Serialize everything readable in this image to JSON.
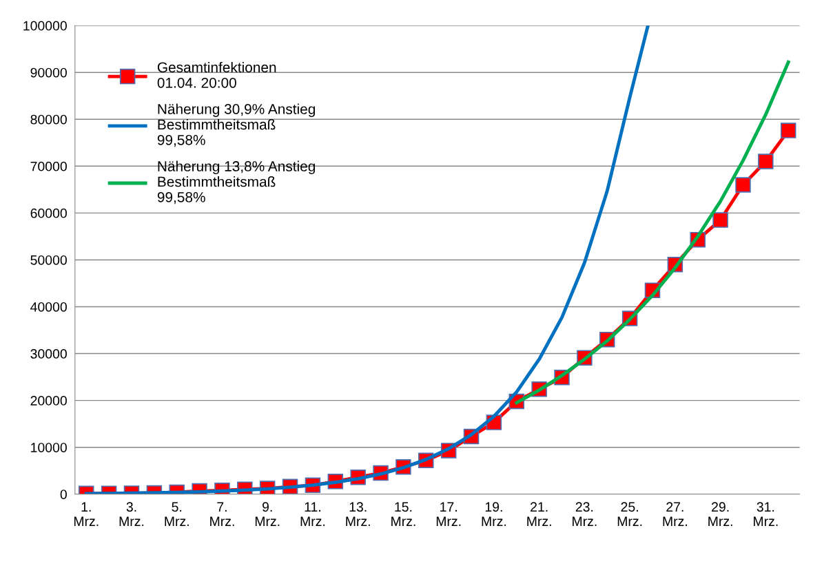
{
  "chart_data": {
    "type": "line",
    "x": [
      1,
      2,
      3,
      4,
      5,
      6,
      7,
      8,
      9,
      10,
      11,
      12,
      13,
      14,
      15,
      16,
      17,
      18,
      19,
      20,
      21,
      22,
      23,
      24,
      25,
      26,
      27,
      28,
      29,
      30,
      31,
      32
    ],
    "xlim": [
      0.5,
      32.5
    ],
    "xticks": [
      {
        "value": 1,
        "label": "1.\nMrz."
      },
      {
        "value": 3,
        "label": "3.\nMrz."
      },
      {
        "value": 5,
        "label": "5.\nMrz."
      },
      {
        "value": 7,
        "label": "7.\nMrz."
      },
      {
        "value": 9,
        "label": "9.\nMrz."
      },
      {
        "value": 11,
        "label": "11.\nMrz."
      },
      {
        "value": 13,
        "label": "13.\nMrz."
      },
      {
        "value": 15,
        "label": "15.\nMrz."
      },
      {
        "value": 17,
        "label": "17.\nMrz."
      },
      {
        "value": 19,
        "label": "19.\nMrz."
      },
      {
        "value": 21,
        "label": "21.\nMrz."
      },
      {
        "value": 23,
        "label": "23.\nMrz."
      },
      {
        "value": 25,
        "label": "25.\nMrz."
      },
      {
        "value": 27,
        "label": "27.\nMrz."
      },
      {
        "value": 29,
        "label": "29.\nMrz."
      },
      {
        "value": 31,
        "label": "31.\nMrz."
      }
    ],
    "ylim": [
      0,
      100000
    ],
    "yticks": [
      0,
      10000,
      20000,
      30000,
      40000,
      50000,
      60000,
      70000,
      80000,
      90000,
      100000
    ],
    "grid": "y",
    "legend": "top left",
    "line_style": "solid",
    "series": [
      {
        "name": "Gesamtinfektionen\n01.04. 20:00",
        "color": "#ff0000",
        "marker": "square",
        "values": [
          130,
          160,
          200,
          260,
          400,
          680,
          800,
          1040,
          1200,
          1600,
          1900,
          2700,
          3600,
          4500,
          5800,
          7200,
          9300,
          12300,
          15300,
          19800,
          22400,
          24900,
          29100,
          33000,
          37500,
          43500,
          49000,
          54300,
          58500,
          66000,
          71000,
          77600
        ]
      },
      {
        "name": "Näherung 30,9% Anstieg\nBestimmtheitsmaß\n99,58%",
        "color": "#0070c0",
        "marker": "none",
        "x": [
          1,
          2,
          3,
          4,
          5,
          6,
          7,
          8,
          9,
          10,
          11,
          12,
          13,
          14,
          15,
          16,
          17,
          18,
          19,
          20,
          21,
          22,
          23,
          24,
          25,
          25.8
        ],
        "values": [
          131,
          172,
          225,
          294,
          385,
          500,
          660,
          860,
          1130,
          1480,
          1930,
          2530,
          3300,
          4300,
          5650,
          7400,
          9700,
          12700,
          16600,
          21800,
          28800,
          37700,
          49400,
          64700,
          84700,
          100000
        ]
      },
      {
        "name": "Näherung 13,8% Anstieg\nBestimmtheitsmaß\n99,58%",
        "color": "#00b050",
        "marker": "none",
        "x": [
          20,
          21,
          22,
          23,
          24,
          25,
          26,
          27,
          28,
          29,
          30,
          31,
          32
        ],
        "values": [
          19500,
          22200,
          25300,
          28800,
          32700,
          37300,
          42400,
          48300,
          55000,
          62500,
          71200,
          81000,
          92200
        ]
      }
    ]
  }
}
